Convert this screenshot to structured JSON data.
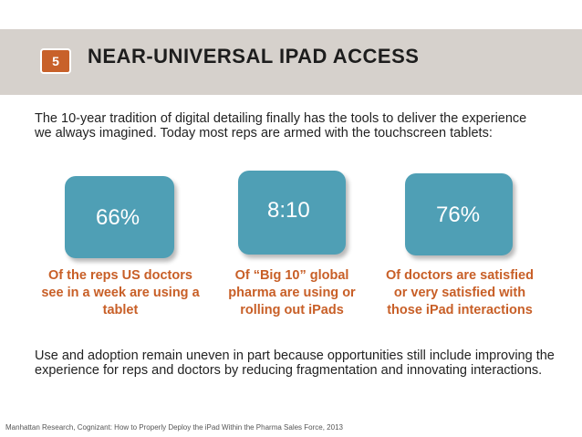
{
  "header": {
    "badge": "5",
    "title": "NEAR-UNIVERSAL IPAD ACCESS"
  },
  "intro": "The 10-year tradition of digital detailing finally has the tools to deliver the experience we always imagined. Today most reps are armed with the touchscreen tablets:",
  "stats": [
    {
      "value": "66%",
      "caption": "Of the reps US doctors see in a week are using a tablet"
    },
    {
      "value": "8:10",
      "caption": "Of “Big 10” global pharma are using or rolling out iPads"
    },
    {
      "value": "76%",
      "caption": "Of doctors are satisfied or very satisfied with those iPad interactions"
    }
  ],
  "body": "Use and adoption remain uneven in part because opportunities still include improving the experience for reps and doctors by reducing fragmentation and innovating interactions.",
  "footer": "Manhattan Research, Cognizant: How to Properly Deploy the iPad Within the Pharma Sales Force, 2013",
  "colors": {
    "header_band": "#d6d1cc",
    "badge": "#c8612a",
    "stat_box": "#4f9fb5",
    "caption": "#c85f27"
  }
}
